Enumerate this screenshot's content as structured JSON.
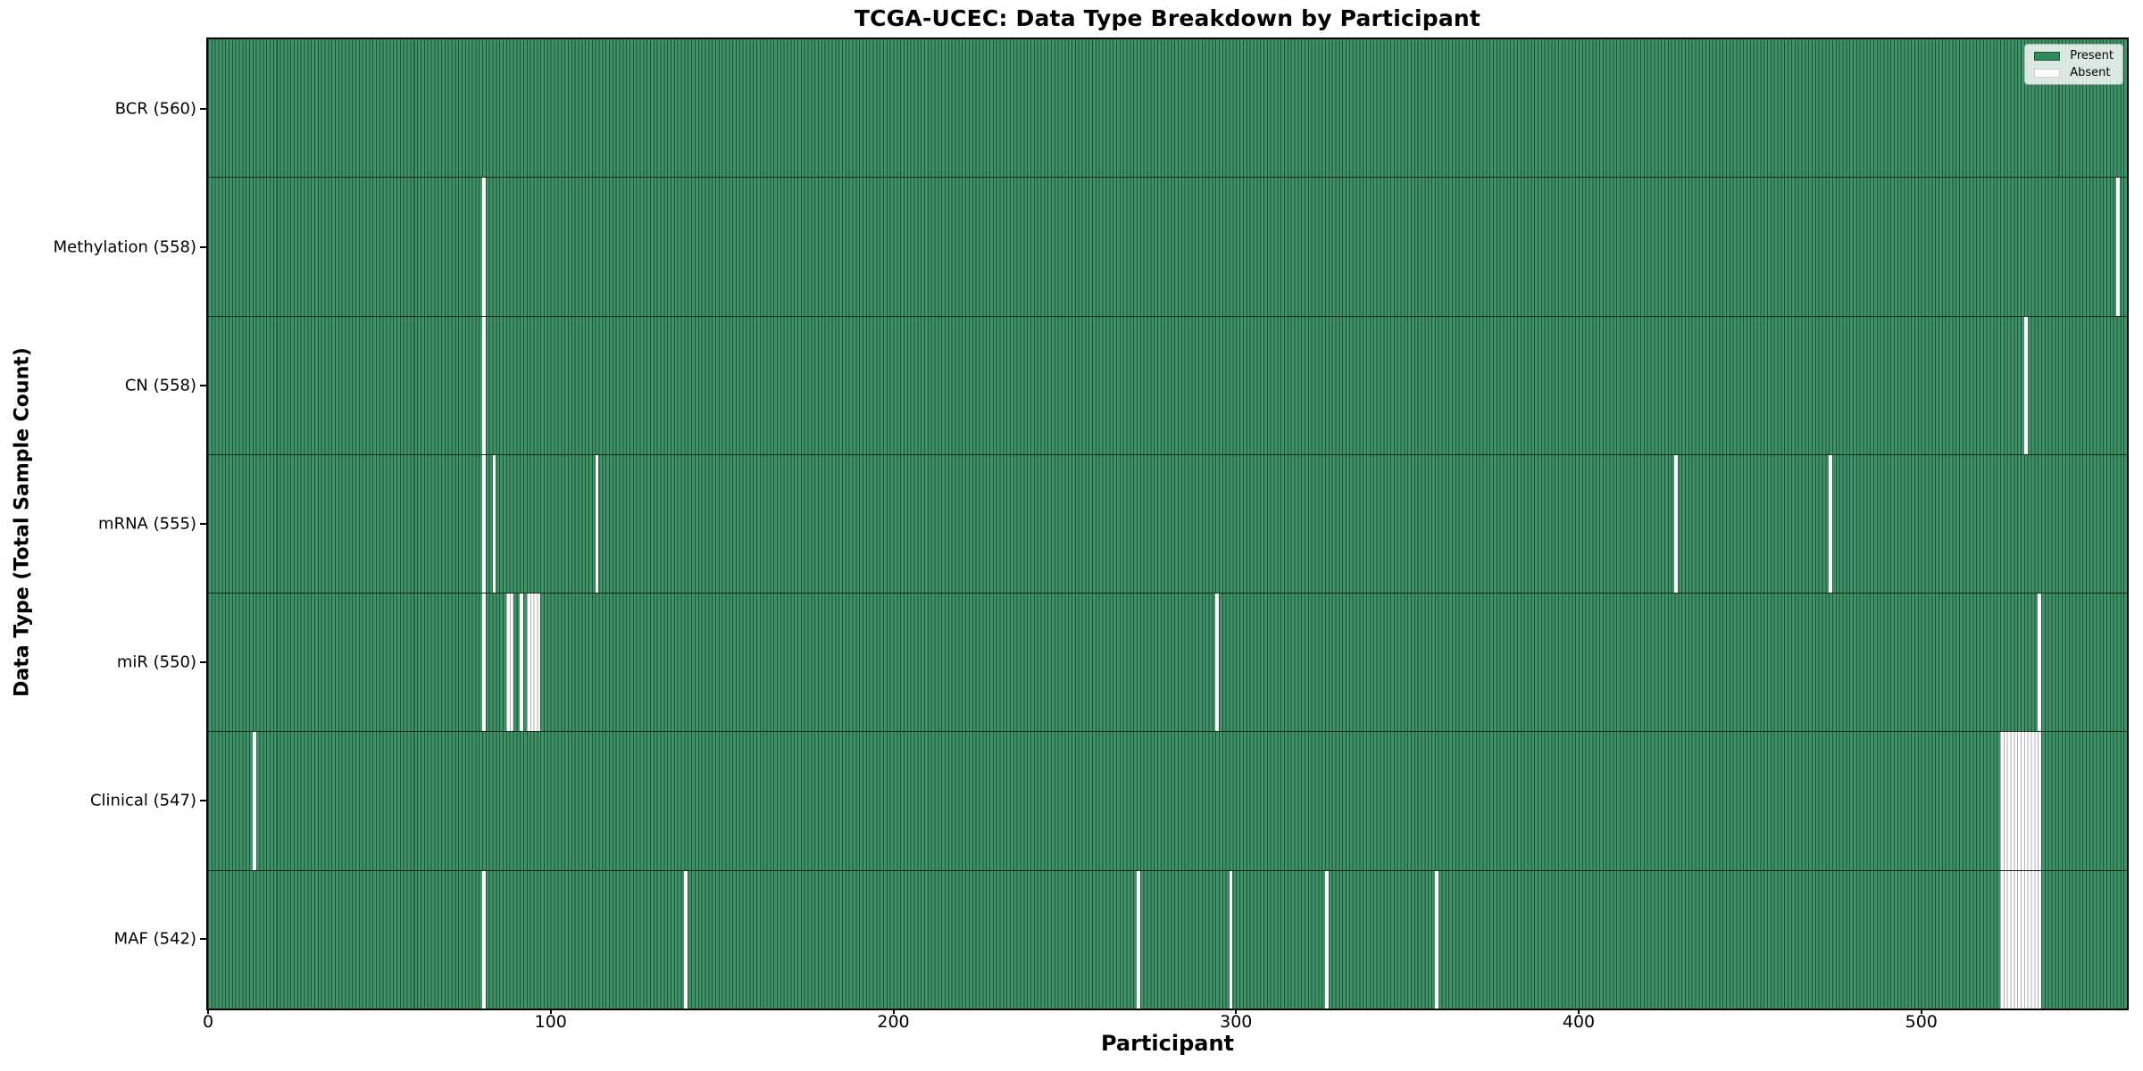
{
  "title": "TCGA-UCEC: Data Type Breakdown by Participant",
  "axes": {
    "x_label": "Participant",
    "y_label": "Data Type (Total Sample Count)"
  },
  "legend": {
    "items": [
      {
        "label": "Present",
        "color": "#2E8B57"
      },
      {
        "label": "Absent",
        "color": "#FFFFFF"
      }
    ]
  },
  "chart_data": {
    "type": "heatmap",
    "title": "TCGA-UCEC: Data Type Breakdown by Participant",
    "xlabel": "Participant",
    "ylabel": "Data Type (Total Sample Count)",
    "x_ticks": [
      0,
      100,
      200,
      300,
      400,
      500
    ],
    "xlim": [
      0,
      560
    ],
    "total_participants": 560,
    "present_color": "#2E8B57",
    "absent_color": "#FFFFFF",
    "grid": false,
    "legend_position": "upper right",
    "rows": [
      {
        "data_type": "BCR",
        "count": 560,
        "label": "BCR (560)",
        "absent_runs": []
      },
      {
        "data_type": "Methylation",
        "count": 558,
        "label": "Methylation (558)",
        "absent_runs": [
          [
            80,
            1
          ],
          [
            557,
            1
          ]
        ]
      },
      {
        "data_type": "CN",
        "count": 558,
        "label": "CN (558)",
        "absent_runs": [
          [
            80,
            1
          ],
          [
            530,
            1
          ]
        ]
      },
      {
        "data_type": "mRNA",
        "count": 555,
        "label": "mRNA (555)",
        "absent_runs": [
          [
            80,
            1
          ],
          [
            83,
            1
          ],
          [
            113,
            1
          ],
          [
            428,
            1
          ],
          [
            473,
            1
          ]
        ]
      },
      {
        "data_type": "miR",
        "count": 550,
        "label": "miR (550)",
        "absent_runs": [
          [
            80,
            1
          ],
          [
            87,
            2
          ],
          [
            91,
            1
          ],
          [
            93,
            4
          ],
          [
            294,
            1
          ],
          [
            534,
            1
          ]
        ]
      },
      {
        "data_type": "Clinical",
        "count": 547,
        "label": "Clinical (547)",
        "absent_runs": [
          [
            13,
            1
          ],
          [
            523,
            12
          ]
        ]
      },
      {
        "data_type": "MAF",
        "count": 542,
        "label": "MAF (542)",
        "absent_runs": [
          [
            80,
            1
          ],
          [
            139,
            1
          ],
          [
            271,
            1
          ],
          [
            298,
            1
          ],
          [
            326,
            1
          ],
          [
            358,
            1
          ],
          [
            523,
            12
          ]
        ]
      }
    ]
  }
}
